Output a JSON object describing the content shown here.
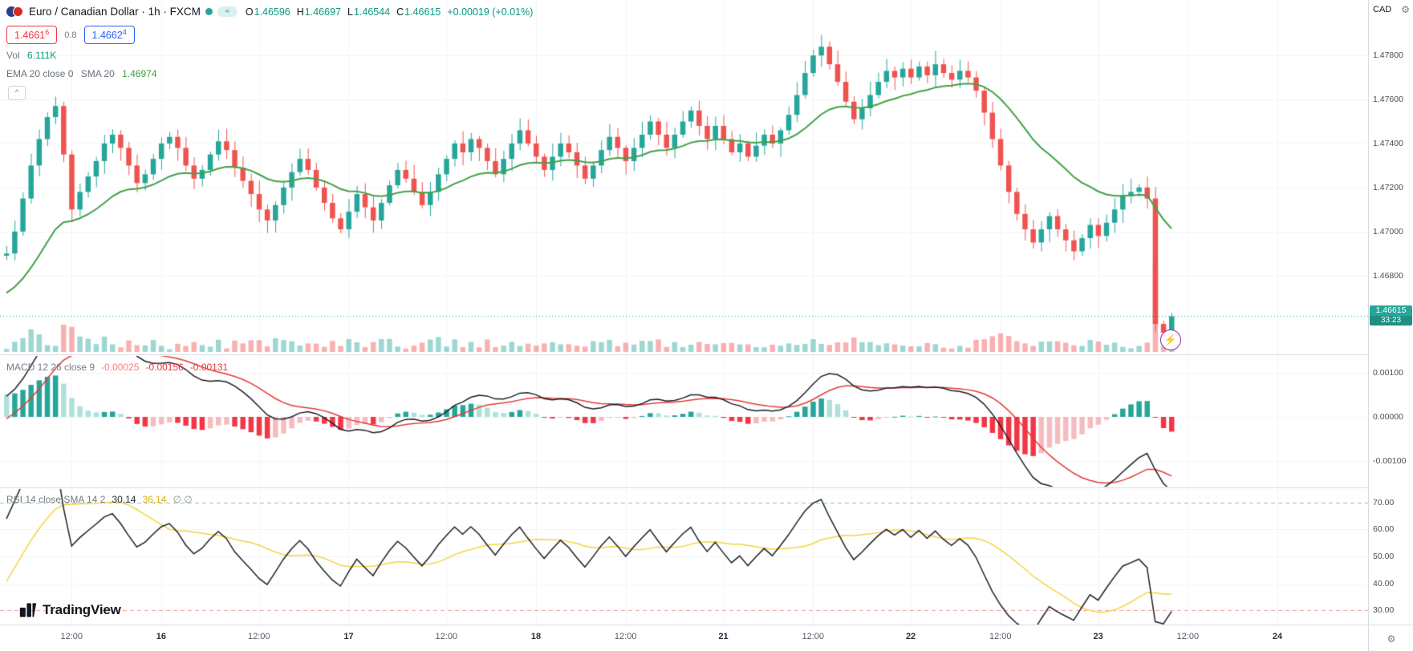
{
  "header": {
    "symbol_title": "Euro / Canadian Dollar · 1h · FXCM",
    "ohlc": {
      "o_label": "O",
      "o": "1.46596",
      "h_label": "H",
      "h": "1.46697",
      "l_label": "L",
      "l": "1.46544",
      "c_label": "C",
      "c": "1.46615",
      "change": "+0.00019 (+0.01%)"
    },
    "bid": "1.4661",
    "bid_sup": "6",
    "spread": "0.8",
    "ask": "1.4662",
    "ask_sup": "4"
  },
  "legend": {
    "vol_label": "Vol",
    "vol_value": "6.111K",
    "ema_label": "EMA 20 close 0",
    "sma_label": "SMA 20",
    "ema_value": "1.46974",
    "macd_label": "MACD 12 26 close 9",
    "macd_hist_value": "-0.00025",
    "macd_value": "-0.00156",
    "macd_signal_value": "-0.00131",
    "rsi_label": "RSI 14 close SMA 14 2",
    "rsi_value": "30.14",
    "rsi_sma_value": "36.14",
    "rsi_extra": "∅ ∅"
  },
  "axis": {
    "currency": "CAD",
    "price_labels": [
      "1.47800",
      "1.47600",
      "1.47400",
      "1.47200",
      "1.47000",
      "1.46800"
    ],
    "macd_labels": [
      "0.00100",
      "0.00000",
      "-0.00100"
    ],
    "rsi_labels": [
      "70.00",
      "60.00",
      "50.00",
      "40.00",
      "30.00"
    ],
    "last_price": "1.46615",
    "countdown": "33:23"
  },
  "icons": {
    "gear": "⚙",
    "lightning": "⚡",
    "collapse": "^",
    "approx": "≈"
  },
  "brand": {
    "name": "TradingView"
  },
  "chart_data": {
    "type": "candlestick",
    "symbol": "Euro / Canadian Dollar",
    "interval": "1h",
    "exchange": "FXCM",
    "last_price": 1.46615,
    "price_ylim": [
      1.465,
      1.4795
    ],
    "price_grid": [
      1.478,
      1.476,
      1.474,
      1.472,
      1.47,
      1.468
    ],
    "pre_closes": [
      1.4689,
      1.4686,
      1.4683,
      1.4679,
      1.4675,
      1.4671,
      1.4667,
      1.4663,
      1.4659,
      1.4655,
      1.4651,
      1.4648,
      1.4645,
      1.4643,
      1.4641,
      1.464,
      1.4642,
      1.4646,
      1.4651,
      1.4657,
      1.4663,
      1.4669,
      1.4674,
      1.4678,
      1.4682,
      1.4685,
      1.4687,
      1.4689
    ],
    "closes": [
      1.469,
      1.47,
      1.4715,
      1.473,
      1.4742,
      1.4752,
      1.4757,
      1.4735,
      1.471,
      1.4718,
      1.4725,
      1.4732,
      1.474,
      1.4744,
      1.4738,
      1.473,
      1.4722,
      1.4726,
      1.4733,
      1.474,
      1.4743,
      1.4738,
      1.473,
      1.4724,
      1.4728,
      1.4735,
      1.4741,
      1.4737,
      1.4729,
      1.4723,
      1.4717,
      1.471,
      1.4705,
      1.4712,
      1.472,
      1.4727,
      1.4733,
      1.4728,
      1.472,
      1.4713,
      1.4706,
      1.4701,
      1.4709,
      1.4717,
      1.4711,
      1.4705,
      1.4713,
      1.4721,
      1.4728,
      1.4724,
      1.4718,
      1.4712,
      1.4718,
      1.4726,
      1.4733,
      1.474,
      1.4736,
      1.4742,
      1.4738,
      1.4732,
      1.4726,
      1.4733,
      1.474,
      1.4746,
      1.474,
      1.4734,
      1.4728,
      1.4734,
      1.474,
      1.4736,
      1.473,
      1.4724,
      1.473,
      1.4737,
      1.4743,
      1.4738,
      1.4732,
      1.4738,
      1.4744,
      1.475,
      1.4744,
      1.4738,
      1.4744,
      1.475,
      1.4755,
      1.4748,
      1.4742,
      1.4748,
      1.4742,
      1.4736,
      1.474,
      1.4734,
      1.4739,
      1.4744,
      1.474,
      1.4746,
      1.4753,
      1.4762,
      1.4772,
      1.478,
      1.4784,
      1.4776,
      1.4768,
      1.4759,
      1.4751,
      1.4756,
      1.4762,
      1.4768,
      1.4773,
      1.477,
      1.4774,
      1.477,
      1.4775,
      1.4771,
      1.4776,
      1.4772,
      1.4769,
      1.4773,
      1.477,
      1.4764,
      1.4754,
      1.4742,
      1.473,
      1.4718,
      1.4708,
      1.4701,
      1.4695,
      1.4701,
      1.4707,
      1.4701,
      1.4696,
      1.4691,
      1.4697,
      1.4703,
      1.4698,
      1.4704,
      1.471,
      1.4716,
      1.4718,
      1.472,
      1.4715,
      1.4658,
      1.4654,
      1.46615
    ],
    "time_ticks": [
      [
        8,
        "12:00"
      ],
      [
        19,
        "16"
      ],
      [
        31,
        "12:00"
      ],
      [
        42,
        "17"
      ],
      [
        54,
        "12:00"
      ],
      [
        65,
        "18"
      ],
      [
        76,
        "12:00"
      ],
      [
        88,
        "21"
      ],
      [
        99,
        "12:00"
      ],
      [
        111,
        "22"
      ],
      [
        122,
        "12:00"
      ],
      [
        134,
        "23"
      ],
      [
        145,
        "12:00"
      ],
      [
        156,
        "24"
      ]
    ],
    "colors": {
      "up": "#26a69a",
      "down": "#ef5350",
      "vol_up": "rgba(38,166,154,0.45)",
      "vol_down": "rgba(239,83,80,0.45)",
      "grid": "#f1f3f8",
      "last_price_line": "#26a69a"
    },
    "indicators": {
      "ema": {
        "period": 20,
        "color": "#43a047"
      },
      "macd": {
        "fast": 12,
        "slow": 26,
        "signal": 9,
        "grid": [
          0.001,
          0,
          -0.001
        ],
        "colors": {
          "line": "#1b1f27",
          "signal": "#e53935",
          "hist_up": "#26a69a",
          "hist_up_weak": "#b0e0da",
          "hist_down": "#f23645",
          "hist_down_weak": "#f5bcc0"
        }
      },
      "rsi": {
        "period": 14,
        "sma_period": 14,
        "bands": [
          70,
          30
        ],
        "grid": [
          70,
          60,
          50,
          40,
          30
        ],
        "ylim": [
          25,
          75
        ],
        "colors": {
          "line": "#1b1f27",
          "sma": "#f2d43f",
          "band_upper": "rgba(38,166,154,0.6)",
          "band_lower": "rgba(239,83,80,0.6)"
        }
      }
    }
  }
}
